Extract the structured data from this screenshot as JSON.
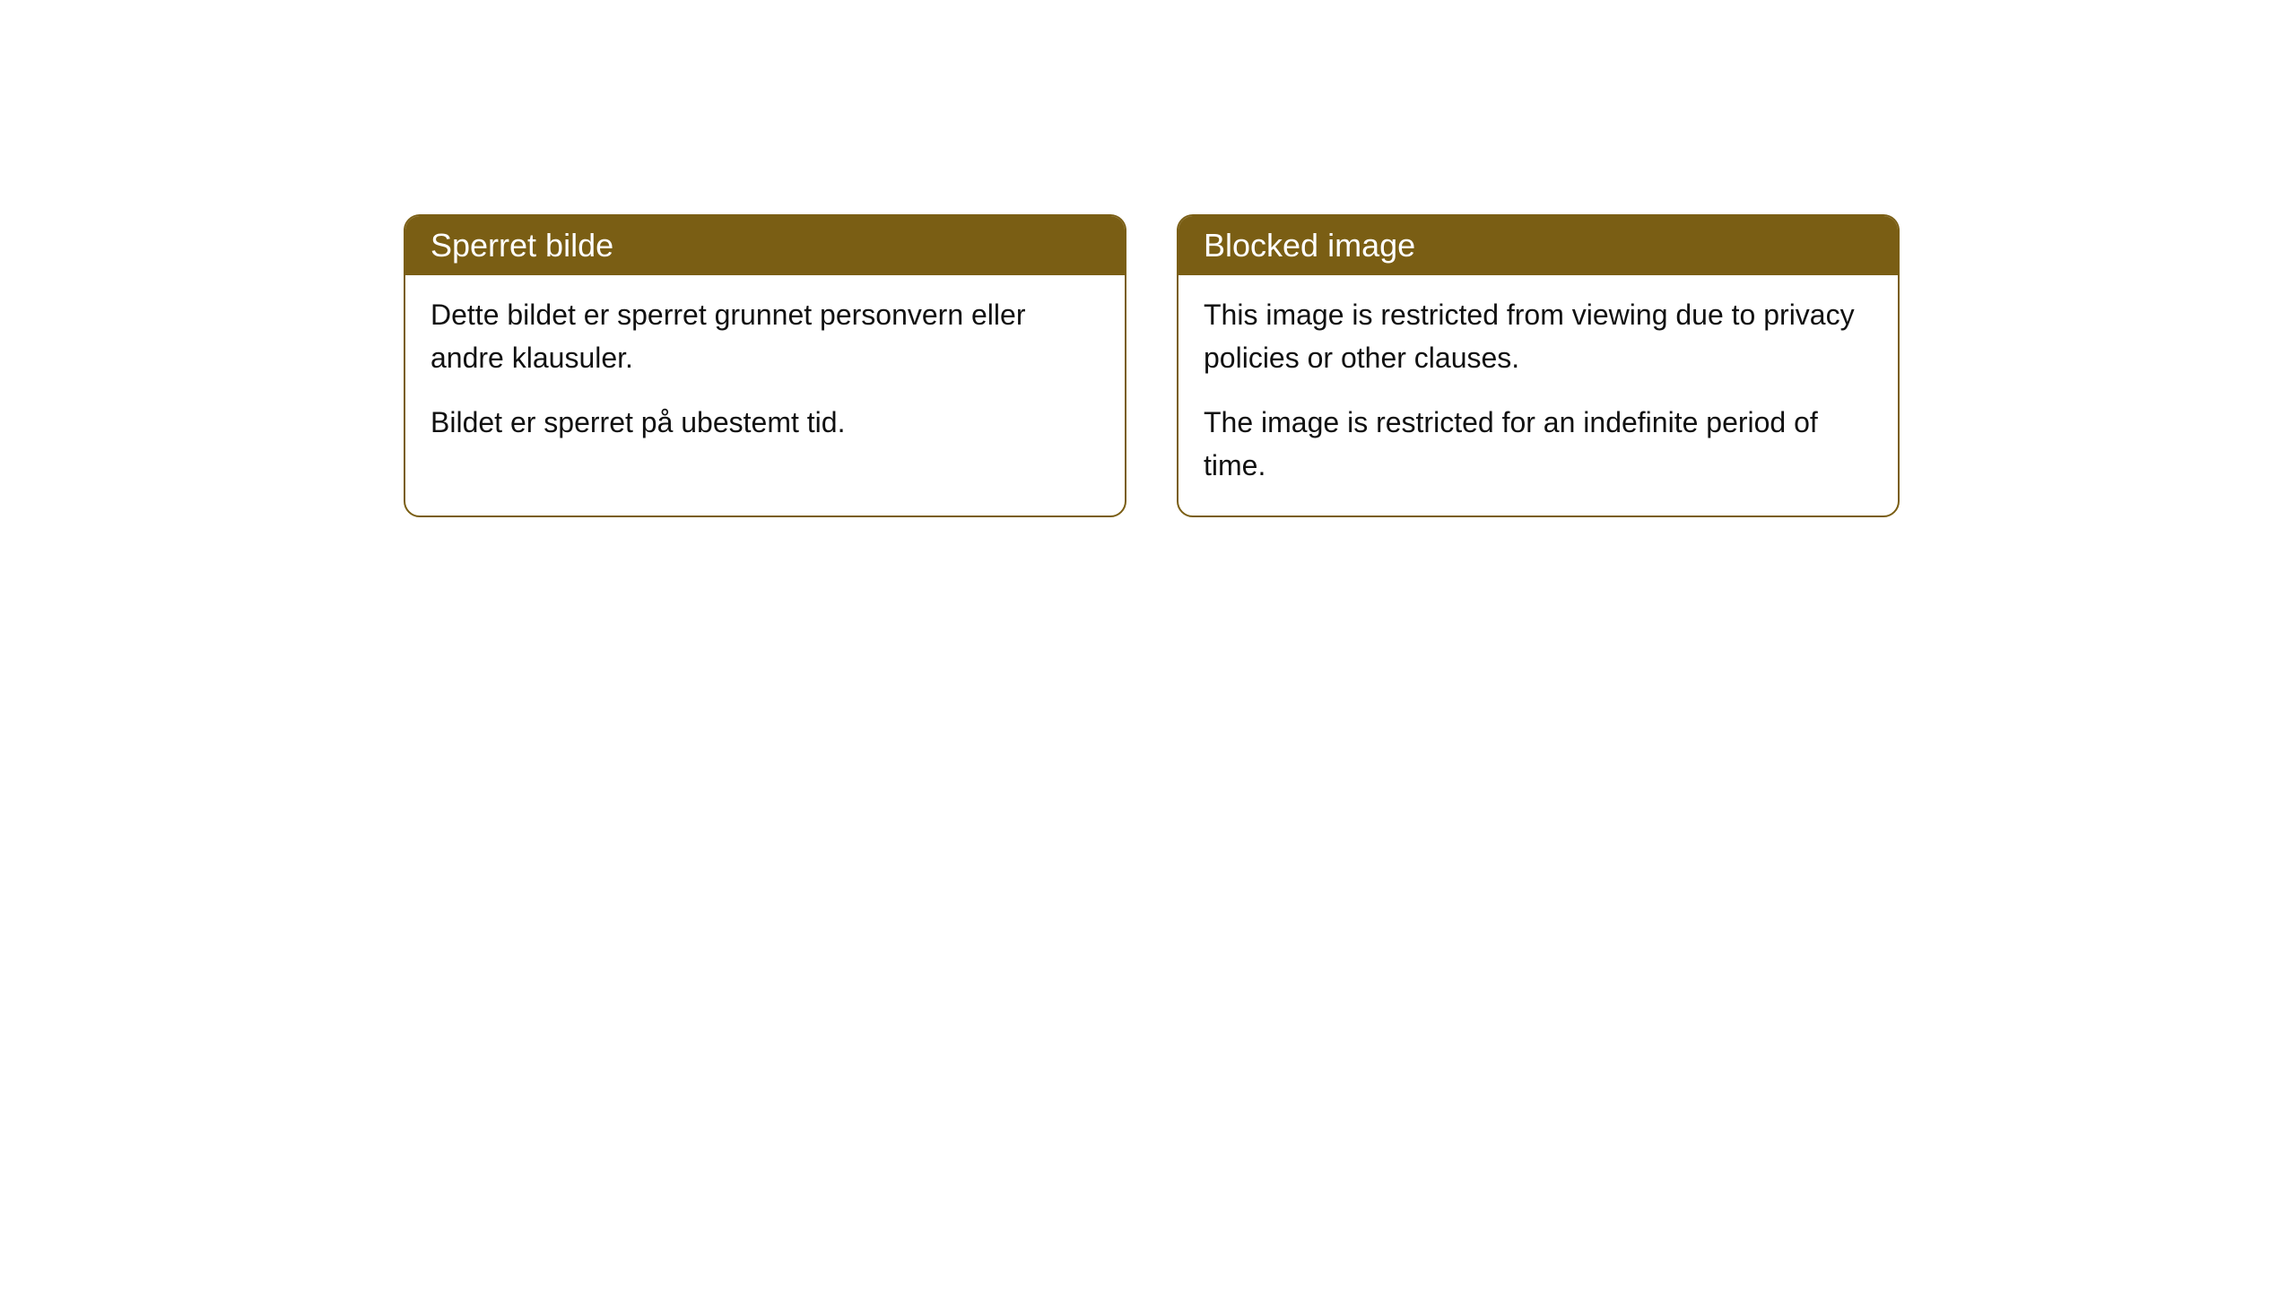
{
  "cards": [
    {
      "title": "Sperret bilde",
      "paragraph1": "Dette bildet er sperret grunnet personvern eller andre klausuler.",
      "paragraph2": "Bildet er sperret på ubestemt tid."
    },
    {
      "title": "Blocked image",
      "paragraph1": "This image is restricted from viewing due to privacy policies or other clauses.",
      "paragraph2": "The image is restricted for an indefinite period of time."
    }
  ],
  "colors": {
    "header_bg": "#7a5e14",
    "header_text": "#ffffff",
    "body_text": "#111111",
    "border": "#7a5e14",
    "background": "#ffffff"
  }
}
